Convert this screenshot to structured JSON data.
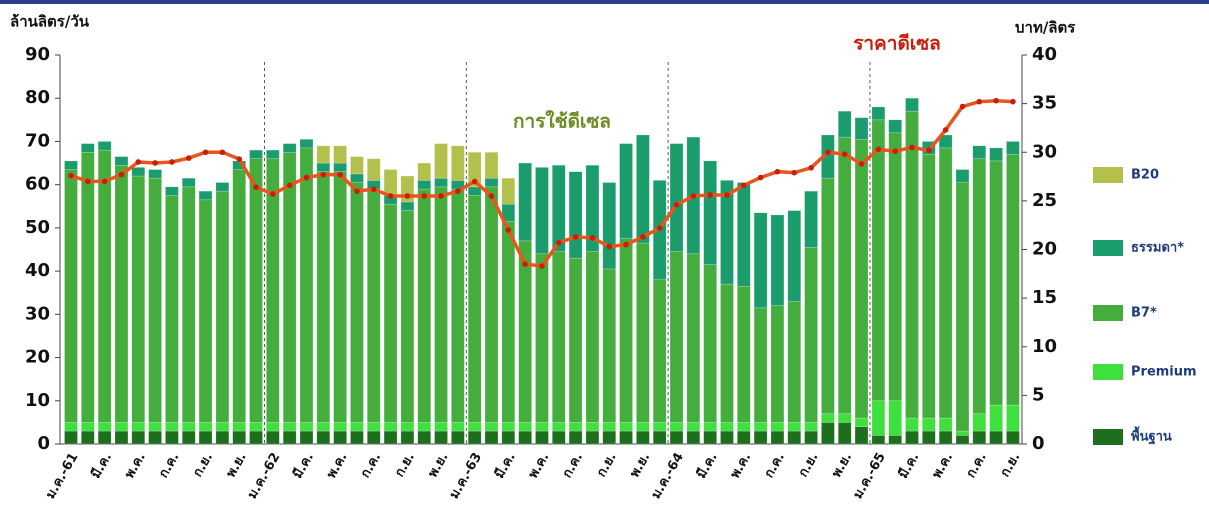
{
  "chart_data": {
    "type": "bar",
    "stacked": true,
    "y_label": "ล้านลิตร/วัน",
    "y2_label": "บาท/ลิตร",
    "annotation": "การใช้ดีเซล",
    "categories": [
      "ม.ค.-61",
      null,
      "มี.ค.",
      null,
      "พ.ค.",
      null,
      "ก.ค.",
      null,
      "ก.ย.",
      null,
      "พ.ย.",
      null,
      "ม.ค.-62",
      null,
      "มี.ค.",
      null,
      "พ.ค.",
      null,
      "ก.ค.",
      null,
      "ก.ย.",
      null,
      "พ.ย.",
      null,
      "ม.ค.-63",
      null,
      "มี.ค.",
      null,
      "พ.ค.",
      null,
      "ก.ค.",
      null,
      "ก.ย.",
      null,
      "พ.ย.",
      null,
      "ม.ค.-64",
      null,
      "มี.ค.",
      null,
      "พ.ค.",
      null,
      "ก.ค.",
      null,
      "ก.ย.",
      null,
      "พ.ย.",
      null,
      "ม.ค.-65",
      null,
      "มี.ค.",
      null,
      "พ.ค.",
      null,
      "ก.ค.",
      null,
      "ก.ย."
    ],
    "series": [
      {
        "name": "พื้นฐาน",
        "color": "#1d6e1d",
        "values": [
          3,
          3,
          3,
          3,
          3,
          3,
          3,
          3,
          3,
          3,
          3,
          3,
          3,
          3,
          3,
          3,
          3,
          3,
          3,
          3,
          3,
          3,
          3,
          3,
          3,
          3,
          3,
          3,
          3,
          3,
          3,
          3,
          3,
          3,
          3,
          3,
          3,
          3,
          3,
          3,
          3,
          3,
          3,
          3,
          3,
          5,
          5,
          4,
          2,
          2,
          3,
          3,
          3,
          2,
          3,
          3,
          3
        ]
      },
      {
        "name": "Premium",
        "color": "#3de03d",
        "values": [
          2,
          2,
          2,
          2,
          2,
          2,
          2,
          2,
          2,
          2,
          2,
          2,
          2,
          2,
          2,
          2,
          2,
          2,
          2,
          2,
          2,
          2,
          2,
          2,
          2,
          2,
          2,
          2,
          2,
          2,
          2,
          2,
          2,
          2,
          2,
          2,
          2,
          2,
          2,
          2,
          2,
          2,
          2,
          2,
          2,
          2,
          2,
          2,
          8,
          8,
          3,
          3,
          3,
          1,
          4,
          6,
          6
        ]
      },
      {
        "name": "B7*",
        "color": "#45ad3e",
        "values": [
          58.5,
          62.5,
          63,
          59.5,
          57,
          56.5,
          52.5,
          54.5,
          51.5,
          53.5,
          58.5,
          61,
          61,
          62.5,
          63.5,
          58,
          58,
          55.5,
          54,
          50.5,
          49,
          54,
          54.5,
          54,
          52.5,
          54.5,
          46.5,
          42,
          39,
          39.5,
          38,
          39.5,
          35.5,
          42.5,
          41.5,
          33,
          39.5,
          39,
          36.5,
          32,
          31.5,
          26.5,
          27,
          28,
          40.5,
          54.5,
          64,
          64.5,
          65,
          62,
          71,
          61,
          62.5,
          57.5,
          59,
          56.5,
          58
        ]
      },
      {
        "name": "ธรรมดา*",
        "color": "#1b9c6c",
        "values": [
          2,
          2,
          2,
          2,
          2,
          2,
          2,
          2,
          2,
          2,
          2,
          2,
          2,
          2,
          2,
          2,
          2,
          2,
          2,
          2,
          2,
          2,
          2,
          2,
          2,
          2,
          4,
          18,
          20,
          20,
          20,
          20,
          20,
          22,
          25,
          23,
          25,
          27,
          24,
          24,
          24,
          22,
          21,
          21,
          13,
          10,
          6,
          5,
          3,
          3,
          3,
          3,
          3,
          3,
          3,
          3,
          3
        ]
      },
      {
        "name": "B20",
        "color": "#b4c04c",
        "values": [
          0,
          0,
          0,
          0,
          0,
          0,
          0,
          0,
          0,
          0,
          0,
          0,
          0,
          0,
          0,
          4,
          4,
          4,
          5,
          6,
          6,
          4,
          8,
          8,
          8,
          6,
          6,
          0,
          0,
          0,
          0,
          0,
          0,
          0,
          0,
          0,
          0,
          0,
          0,
          0,
          0,
          0,
          0,
          0,
          0,
          0,
          0,
          0,
          0,
          0,
          0,
          0,
          0,
          0,
          0,
          0,
          0
        ]
      },
      {
        "name": "ราคาดีเซล",
        "type": "line",
        "axis": "y2",
        "color": "#e8561c",
        "values": [
          27.6,
          27,
          27,
          27.7,
          29,
          28.9,
          29,
          29.4,
          30,
          30,
          29.3,
          26.4,
          25.7,
          26.6,
          27.4,
          27.7,
          27.7,
          26,
          26.2,
          25.5,
          25.5,
          25.5,
          25.5,
          26,
          27,
          25.5,
          22,
          18.5,
          18.3,
          20.7,
          21.3,
          21.2,
          20.3,
          20.5,
          21.3,
          22.2,
          24.6,
          25.5,
          25.6,
          25.6,
          26.6,
          27.4,
          28,
          27.9,
          28.4,
          30,
          29.8,
          28.8,
          30.3,
          30.1,
          30.5,
          30.2,
          32.3,
          34.7,
          35.2,
          35.3,
          35.2
        ]
      }
    ],
    "ylim": [
      0,
      90
    ],
    "yticks": [
      0,
      10,
      20,
      30,
      40,
      50,
      60,
      70,
      80,
      90
    ],
    "y2lim": [
      0,
      40
    ],
    "y2ticks": [
      0,
      5,
      10,
      15,
      20,
      25,
      30,
      35,
      40
    ],
    "grid": false,
    "legend": "right"
  }
}
